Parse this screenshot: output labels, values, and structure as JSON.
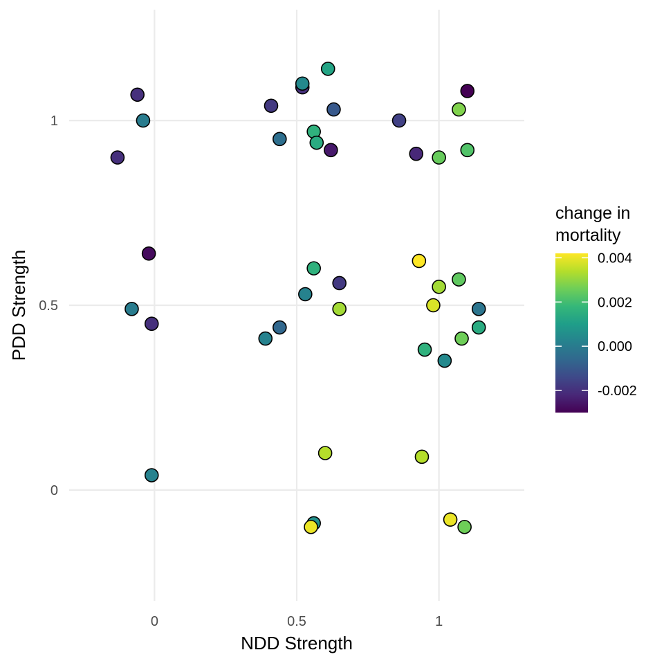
{
  "chart_data": {
    "type": "scatter",
    "xlabel": "NDD Strength",
    "ylabel": "PDD Strength",
    "xlim": [
      -0.3,
      1.3
    ],
    "ylim": [
      -0.3,
      1.3
    ],
    "x_ticks": [
      0,
      0.5,
      1
    ],
    "x_tick_labels": [
      "0",
      "0.5",
      "1"
    ],
    "y_ticks": [
      0,
      0.5,
      1
    ],
    "y_tick_labels": [
      "0",
      "0.5",
      "1"
    ],
    "grid": true,
    "legend": {
      "title_lines": [
        "change in",
        "mortality"
      ],
      "placement": "right",
      "range": [
        -0.003,
        0.0042
      ],
      "ticks": [
        0.004,
        0.002,
        0.0,
        -0.002
      ],
      "tick_labels": [
        "0.004",
        "0.002",
        "0.000",
        "-0.002"
      ],
      "colormap": "viridis",
      "colors": [
        "#440154",
        "#482878",
        "#3e4989",
        "#31688e",
        "#26828e",
        "#1f9e89",
        "#35b779",
        "#6ece58",
        "#b5de2b",
        "#fde725"
      ]
    },
    "points": [
      {
        "x": -0.06,
        "y": 1.07,
        "z": -0.002
      },
      {
        "x": -0.04,
        "y": 1.0,
        "z": 0.0
      },
      {
        "x": -0.13,
        "y": 0.9,
        "z": -0.002
      },
      {
        "x": -0.02,
        "y": 0.64,
        "z": -0.0028
      },
      {
        "x": -0.08,
        "y": 0.49,
        "z": 0.0
      },
      {
        "x": -0.01,
        "y": 0.45,
        "z": -0.002
      },
      {
        "x": -0.01,
        "y": 0.04,
        "z": 0.0002
      },
      {
        "x": 0.41,
        "y": 1.04,
        "z": -0.0018
      },
      {
        "x": 0.44,
        "y": 0.95,
        "z": -0.0004
      },
      {
        "x": 0.52,
        "y": 1.09,
        "z": -0.002
      },
      {
        "x": 0.52,
        "y": 1.1,
        "z": 0.0004
      },
      {
        "x": 0.61,
        "y": 1.14,
        "z": 0.0012
      },
      {
        "x": 0.63,
        "y": 1.03,
        "z": -0.001
      },
      {
        "x": 0.56,
        "y": 0.97,
        "z": 0.0016
      },
      {
        "x": 0.57,
        "y": 0.94,
        "z": 0.0014
      },
      {
        "x": 0.62,
        "y": 0.92,
        "z": -0.0025
      },
      {
        "x": 0.86,
        "y": 1.0,
        "z": -0.0016
      },
      {
        "x": 0.92,
        "y": 0.91,
        "z": -0.0022
      },
      {
        "x": 1.0,
        "y": 0.9,
        "z": 0.0025
      },
      {
        "x": 1.07,
        "y": 1.03,
        "z": 0.0028
      },
      {
        "x": 1.1,
        "y": 0.92,
        "z": 0.0022
      },
      {
        "x": 1.1,
        "y": 1.08,
        "z": -0.003
      },
      {
        "x": 0.56,
        "y": 0.6,
        "z": 0.0016
      },
      {
        "x": 0.53,
        "y": 0.53,
        "z": 0.0002
      },
      {
        "x": 0.65,
        "y": 0.56,
        "z": -0.0018
      },
      {
        "x": 0.65,
        "y": 0.49,
        "z": 0.0032
      },
      {
        "x": 0.39,
        "y": 0.41,
        "z": 0.0002
      },
      {
        "x": 0.44,
        "y": 0.44,
        "z": -0.0006
      },
      {
        "x": 0.93,
        "y": 0.62,
        "z": 0.0042
      },
      {
        "x": 1.0,
        "y": 0.55,
        "z": 0.0032
      },
      {
        "x": 1.07,
        "y": 0.57,
        "z": 0.0024
      },
      {
        "x": 0.98,
        "y": 0.5,
        "z": 0.0038
      },
      {
        "x": 1.14,
        "y": 0.49,
        "z": -0.0002
      },
      {
        "x": 1.14,
        "y": 0.44,
        "z": 0.0014
      },
      {
        "x": 1.08,
        "y": 0.41,
        "z": 0.0026
      },
      {
        "x": 0.95,
        "y": 0.38,
        "z": 0.0016
      },
      {
        "x": 1.02,
        "y": 0.35,
        "z": 0.0004
      },
      {
        "x": 0.6,
        "y": 0.1,
        "z": 0.0034
      },
      {
        "x": 0.94,
        "y": 0.09,
        "z": 0.0034
      },
      {
        "x": 0.56,
        "y": -0.09,
        "z": 0.0006
      },
      {
        "x": 0.55,
        "y": -0.1,
        "z": 0.004
      },
      {
        "x": 1.04,
        "y": -0.08,
        "z": 0.004
      },
      {
        "x": 1.09,
        "y": -0.1,
        "z": 0.0026
      }
    ]
  }
}
